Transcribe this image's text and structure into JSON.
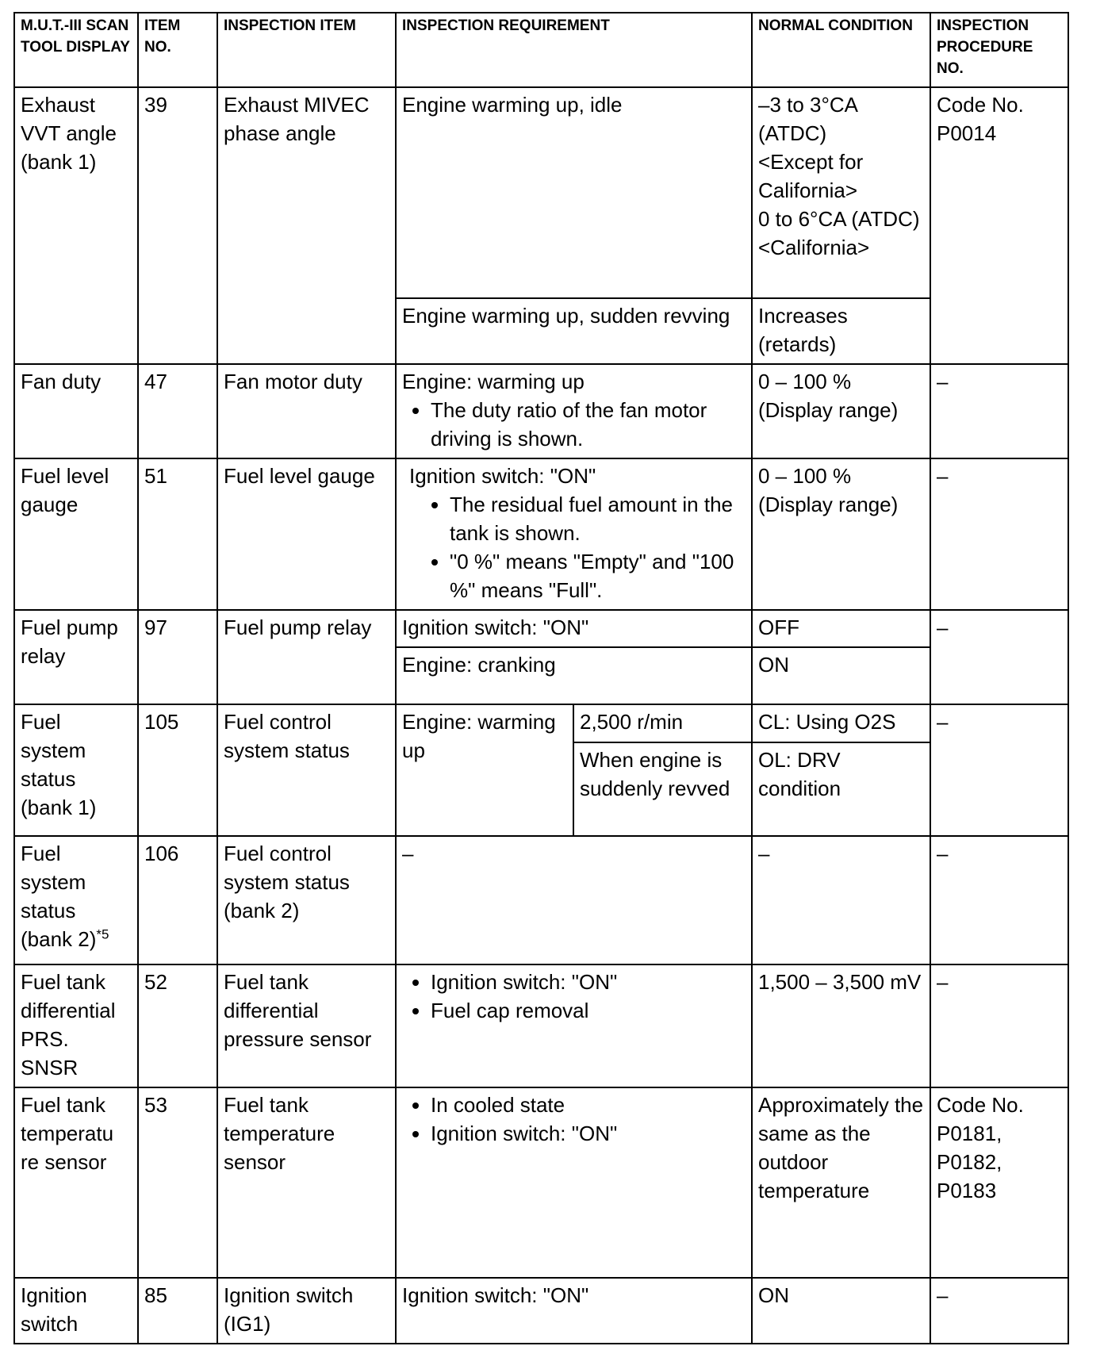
{
  "headers": [
    "M.U.T.-III SCAN TOOL DISPLAY",
    "ITEM NO.",
    "INSPECTION ITEM",
    "INSPECTION REQUIREMENT",
    "NORMAL CONDITION",
    "INSPECTION PROCEDURE NO."
  ],
  "rows": {
    "r1": {
      "display": "Exhaust VVT angle (bank 1)",
      "no": "39",
      "item": "Exhaust MIVEC phase angle",
      "req1": "Engine warming up, idle",
      "normal1": [
        "–3 to 3°CA (ATDC)",
        "<Except for California>",
        "0 to 6°CA (ATDC)",
        "<California>"
      ],
      "req2": "Engine warming up, sudden revving",
      "normal2": "Increases (retards)",
      "proc": "Code No. P0014"
    },
    "r2": {
      "display": "Fan duty",
      "no": "47",
      "item": "Fan motor duty",
      "req": "Engine: warming up",
      "bullets": [
        "The duty ratio of the fan motor driving is shown."
      ],
      "normal": "0 – 100 % (Display range)",
      "proc": "–"
    },
    "r3": {
      "display": "Fuel level gauge",
      "no": "51",
      "item": "Fuel level gauge",
      "req": "Ignition switch: \"ON\"",
      "bullets": [
        "The residual fuel amount in the tank is shown.",
        "\"0 %\" means \"Empty\" and \"100 %\" means \"Full\"."
      ],
      "normal": "0 – 100 % (Display range)",
      "proc": "–"
    },
    "r4": {
      "display": "Fuel pump relay",
      "no": "97",
      "item": "Fuel pump relay",
      "req1": "Ignition switch: \"ON\"",
      "normal1": "OFF",
      "req2": "Engine: cranking",
      "normal2": "ON",
      "proc": "–"
    },
    "r5": {
      "display": "Fuel system status (bank 1)",
      "no": "105",
      "item": "Fuel control system status",
      "req": "Engine: warming up",
      "sub1": "2,500 r/min",
      "normal1": "CL: Using O2S",
      "sub2": "When engine is suddenly revved",
      "normal2": "OL: DRV condition",
      "proc": "–"
    },
    "r6": {
      "display": "Fuel system status (bank 2)",
      "display_sup": "*5",
      "no": "106",
      "item": "Fuel control system status (bank 2)",
      "req": "–",
      "normal": "–",
      "proc": "–"
    },
    "r7": {
      "display": "Fuel tank differential PRS. SNSR",
      "no": "52",
      "item": "Fuel tank differential pressure sensor",
      "bullets": [
        "Ignition switch: \"ON\"",
        "Fuel cap removal"
      ],
      "normal": "1,500 – 3,500 mV",
      "proc": "–"
    },
    "r8": {
      "display": "Fuel tank temperatu re sensor",
      "no": "53",
      "item": "Fuel tank temperature sensor",
      "bullets": [
        "In cooled state",
        "Ignition switch: \"ON\""
      ],
      "normal": "Approximately the same as the outdoor temperature",
      "proc": "Code No. P0181, P0182, P0183"
    },
    "r9": {
      "display": "Ignition switch",
      "no": "85",
      "item": "Ignition switch (IG1)",
      "req": "Ignition switch: \"ON\"",
      "normal": "ON",
      "proc": "–"
    }
  }
}
